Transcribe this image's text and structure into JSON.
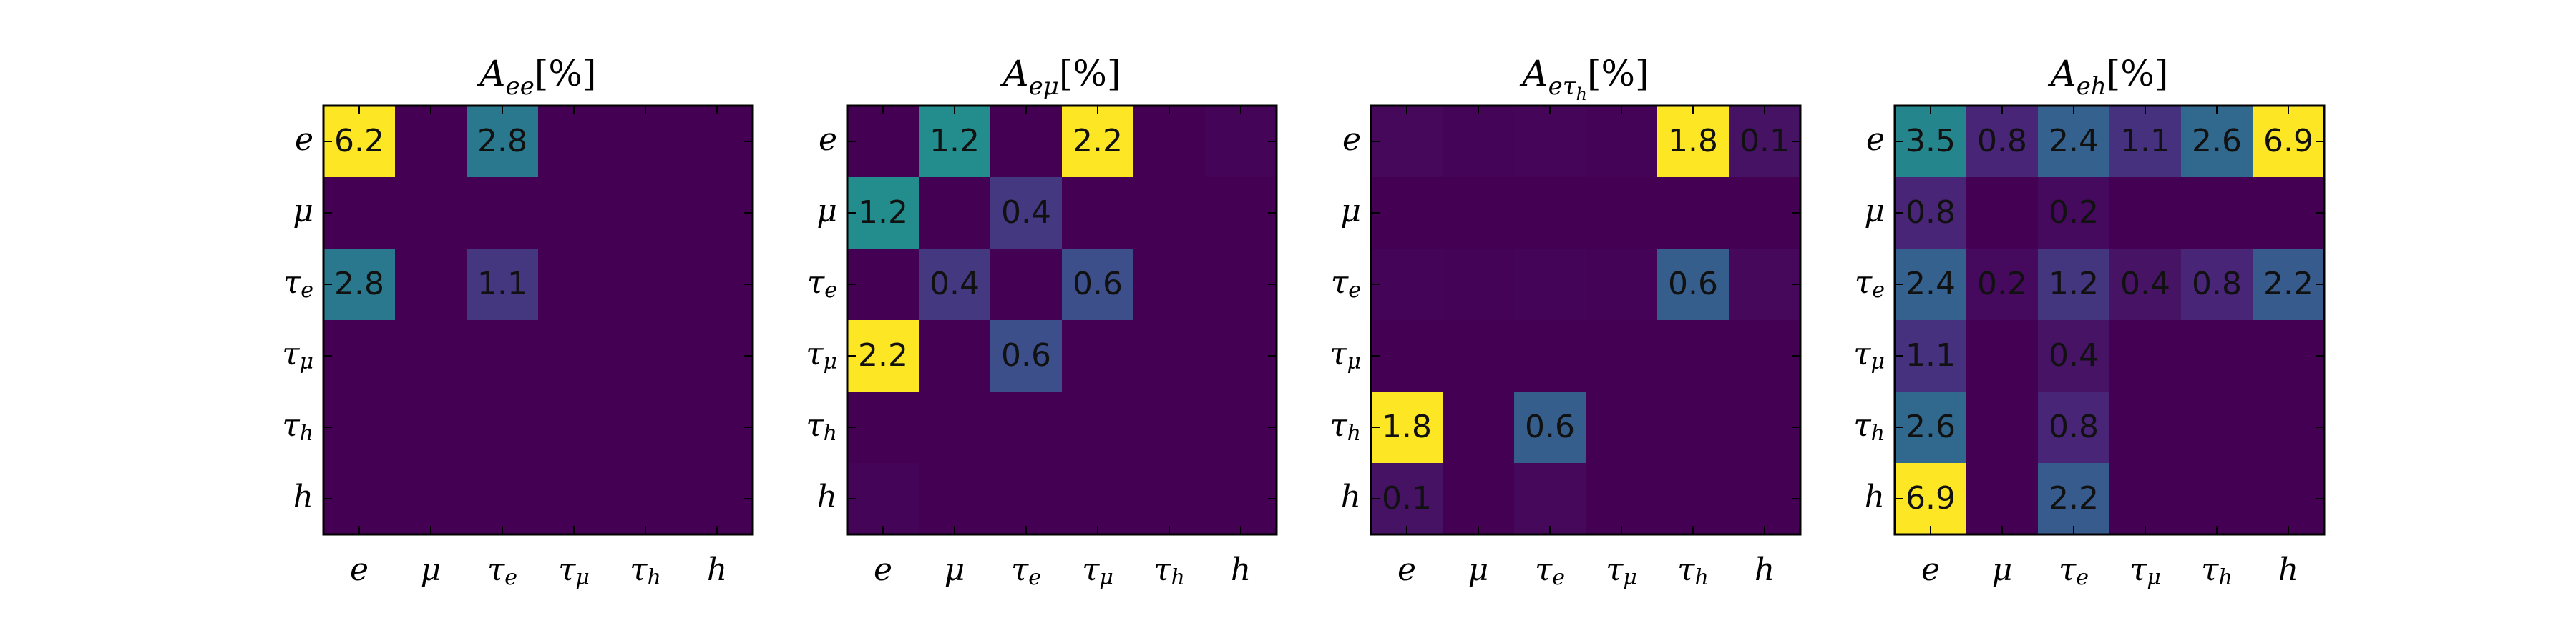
{
  "chart_data": [
    {
      "type": "heatmap",
      "title": "A_ee[%]",
      "title_parts": {
        "base": "A",
        "sub": "ee",
        "subsub": "",
        "unit": "[%]"
      },
      "x_labels": [
        {
          "base": "e",
          "sub": ""
        },
        {
          "base": "μ",
          "sub": ""
        },
        {
          "base": "τ",
          "sub": "e"
        },
        {
          "base": "τ",
          "sub": "μ"
        },
        {
          "base": "τ",
          "sub": "h"
        },
        {
          "base": "h",
          "sub": ""
        }
      ],
      "y_labels": [
        {
          "base": "e",
          "sub": ""
        },
        {
          "base": "μ",
          "sub": ""
        },
        {
          "base": "τ",
          "sub": "e"
        },
        {
          "base": "τ",
          "sub": "μ"
        },
        {
          "base": "τ",
          "sub": "h"
        },
        {
          "base": "h",
          "sub": ""
        }
      ],
      "values": [
        [
          6.2,
          0,
          2.8,
          0,
          0,
          0
        ],
        [
          0,
          0,
          0,
          0,
          0,
          0
        ],
        [
          2.8,
          0,
          1.1,
          0,
          0,
          0
        ],
        [
          0,
          0,
          0,
          0,
          0,
          0
        ],
        [
          0,
          0,
          0,
          0,
          0,
          0
        ],
        [
          0,
          0,
          0,
          0,
          0,
          0
        ]
      ],
      "labels": [
        [
          "6.2",
          "",
          "2.8",
          "",
          "",
          ""
        ],
        [
          "",
          "",
          "",
          "",
          "",
          ""
        ],
        [
          "2.8",
          "",
          "1.1",
          "",
          "",
          ""
        ],
        [
          "",
          "",
          "",
          "",
          "",
          ""
        ],
        [
          "",
          "",
          "",
          "",
          "",
          ""
        ],
        [
          "",
          "",
          "",
          "",
          "",
          ""
        ]
      ],
      "colormap": "viridis"
    },
    {
      "type": "heatmap",
      "title": "A_eμ[%]",
      "title_parts": {
        "base": "A",
        "sub": "eμ",
        "subsub": "",
        "unit": "[%]"
      },
      "x_labels": [
        {
          "base": "e",
          "sub": ""
        },
        {
          "base": "μ",
          "sub": ""
        },
        {
          "base": "τ",
          "sub": "e"
        },
        {
          "base": "τ",
          "sub": "μ"
        },
        {
          "base": "τ",
          "sub": "h"
        },
        {
          "base": "h",
          "sub": ""
        }
      ],
      "y_labels": [
        {
          "base": "e",
          "sub": ""
        },
        {
          "base": "μ",
          "sub": ""
        },
        {
          "base": "τ",
          "sub": "e"
        },
        {
          "base": "τ",
          "sub": "μ"
        },
        {
          "base": "τ",
          "sub": "h"
        },
        {
          "base": "h",
          "sub": ""
        }
      ],
      "values": [
        [
          0,
          1.2,
          0,
          2.2,
          0,
          0.02
        ],
        [
          1.2,
          0,
          0.4,
          0,
          0,
          0
        ],
        [
          0,
          0.4,
          0,
          0.6,
          0,
          0
        ],
        [
          2.2,
          0,
          0.6,
          0,
          0,
          0
        ],
        [
          0,
          0,
          0,
          0,
          0,
          0
        ],
        [
          0.02,
          0,
          0,
          0,
          0,
          0
        ]
      ],
      "labels": [
        [
          "",
          "1.2",
          "",
          "2.2",
          "",
          ""
        ],
        [
          "1.2",
          "",
          "0.4",
          "",
          "",
          ""
        ],
        [
          "",
          "0.4",
          "",
          "0.6",
          "",
          ""
        ],
        [
          "2.2",
          "",
          "0.6",
          "",
          "",
          ""
        ],
        [
          "",
          "",
          "",
          "",
          "",
          ""
        ],
        [
          "",
          "",
          "",
          "",
          "",
          ""
        ]
      ],
      "colormap": "viridis"
    },
    {
      "type": "heatmap",
      "title": "A_eτh[%]",
      "title_parts": {
        "base": "A",
        "sub": "eτ",
        "subsub": "h",
        "unit": "[%]"
      },
      "x_labels": [
        {
          "base": "e",
          "sub": ""
        },
        {
          "base": "μ",
          "sub": ""
        },
        {
          "base": "τ",
          "sub": "e"
        },
        {
          "base": "τ",
          "sub": "μ"
        },
        {
          "base": "τ",
          "sub": "h"
        },
        {
          "base": "h",
          "sub": ""
        }
      ],
      "y_labels": [
        {
          "base": "e",
          "sub": ""
        },
        {
          "base": "μ",
          "sub": ""
        },
        {
          "base": "τ",
          "sub": "e"
        },
        {
          "base": "τ",
          "sub": "μ"
        },
        {
          "base": "τ",
          "sub": "h"
        },
        {
          "base": "h",
          "sub": ""
        }
      ],
      "values": [
        [
          0.04,
          0.02,
          0.03,
          0.01,
          1.8,
          0.1
        ],
        [
          0,
          0,
          0,
          0,
          0,
          0
        ],
        [
          0.02,
          0.01,
          0.02,
          0.01,
          0.6,
          0.04
        ],
        [
          0,
          0,
          0,
          0,
          0,
          0
        ],
        [
          1.8,
          0,
          0.6,
          0,
          0,
          0
        ],
        [
          0.1,
          0,
          0.04,
          0,
          0,
          0
        ]
      ],
      "labels": [
        [
          "",
          "",
          "",
          "",
          "1.8",
          "0.1"
        ],
        [
          "",
          "",
          "",
          "",
          "",
          ""
        ],
        [
          "",
          "",
          "",
          "",
          "0.6",
          ""
        ],
        [
          "",
          "",
          "",
          "",
          "",
          ""
        ],
        [
          "1.8",
          "",
          "0.6",
          "",
          "",
          ""
        ],
        [
          "0.1",
          "",
          "",
          "",
          "",
          ""
        ]
      ],
      "colormap": "viridis"
    },
    {
      "type": "heatmap",
      "title": "A_eh[%]",
      "title_parts": {
        "base": "A",
        "sub": "eh",
        "subsub": "",
        "unit": "[%]"
      },
      "x_labels": [
        {
          "base": "e",
          "sub": ""
        },
        {
          "base": "μ",
          "sub": ""
        },
        {
          "base": "τ",
          "sub": "e"
        },
        {
          "base": "τ",
          "sub": "μ"
        },
        {
          "base": "τ",
          "sub": "h"
        },
        {
          "base": "h",
          "sub": ""
        }
      ],
      "y_labels": [
        {
          "base": "e",
          "sub": ""
        },
        {
          "base": "μ",
          "sub": ""
        },
        {
          "base": "τ",
          "sub": "e"
        },
        {
          "base": "τ",
          "sub": "μ"
        },
        {
          "base": "τ",
          "sub": "h"
        },
        {
          "base": "h",
          "sub": ""
        }
      ],
      "values": [
        [
          3.5,
          0.8,
          2.4,
          1.1,
          2.6,
          6.9
        ],
        [
          0.8,
          0,
          0.2,
          0,
          0,
          0
        ],
        [
          2.4,
          0.2,
          1.2,
          0.4,
          0.8,
          2.2
        ],
        [
          1.1,
          0,
          0.4,
          0,
          0,
          0
        ],
        [
          2.6,
          0,
          0.8,
          0,
          0,
          0
        ],
        [
          6.9,
          0,
          2.2,
          0,
          0,
          0
        ]
      ],
      "labels": [
        [
          "3.5",
          "0.8",
          "2.4",
          "1.1",
          "2.6",
          "6.9"
        ],
        [
          "0.8",
          "",
          "0.2",
          "",
          "",
          ""
        ],
        [
          "2.4",
          "0.2",
          "1.2",
          "0.4",
          "0.8",
          "2.2"
        ],
        [
          "1.1",
          "",
          "0.4",
          "",
          "",
          ""
        ],
        [
          "2.6",
          "",
          "0.8",
          "",
          "",
          ""
        ],
        [
          "6.9",
          "",
          "2.2",
          "",
          "",
          ""
        ]
      ],
      "colormap": "viridis"
    }
  ]
}
